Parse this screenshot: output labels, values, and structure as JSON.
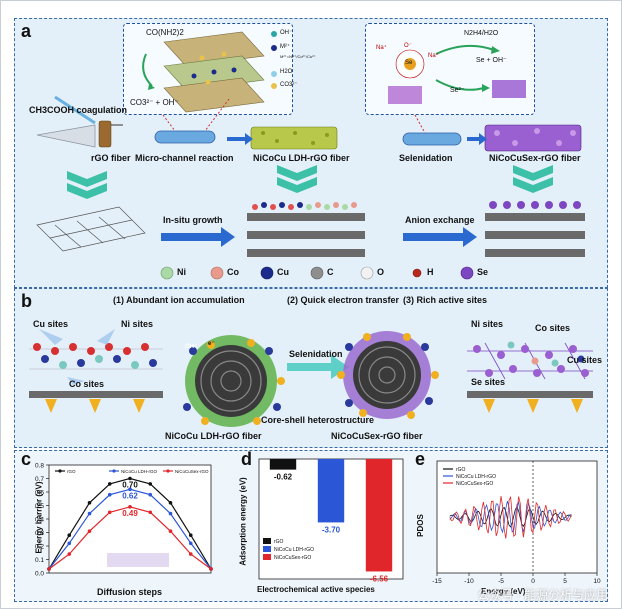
{
  "panel_a": {
    "label": "a",
    "coagulation": "CH3COOH coagulation",
    "rgo_fiber": "rGO fiber",
    "microchannel": "Micro-channel reaction",
    "ldh_fiber": "NiCoCu LDH-rGO fiber",
    "selenidation": "Selenidation",
    "se_fiber": "NiCoCuSex-rGO fiber",
    "insitu": "In-situ growth",
    "anion": "Anion exchange",
    "inset1": {
      "urea": "CO(NH2)2",
      "products": "CO3²⁻ + OH⁻",
      "legend": [
        "OH⁻",
        "M²⁺",
        "M²⁺=Ni²⁺/Co²⁺/Cu²⁺",
        "H2O",
        "CO3²⁻"
      ]
    },
    "inset2": {
      "n2h4": "N2H4/H2O",
      "seoh": "Se + OH⁻",
      "se2": "Se²⁻",
      "na1": "Na⁺",
      "na2": "Na⁺",
      "o": "O⁻",
      "se": "Se"
    },
    "legend": [
      {
        "label": "Ni",
        "color": "#a9d9a4"
      },
      {
        "label": "Co",
        "color": "#e89a8c"
      },
      {
        "label": "Cu",
        "color": "#1c2a8c"
      },
      {
        "label": "C",
        "color": "#8e8e8e"
      },
      {
        "label": "O",
        "color": "#f2f2f2"
      },
      {
        "label": "H",
        "color": "#b8281c"
      },
      {
        "label": "Se",
        "color": "#7d47c2"
      }
    ]
  },
  "panel_b": {
    "label": "b",
    "h1": "(1) Abundant ion accumulation",
    "h2": "(2) Quick electron transfer",
    "h3": "(3) Rich active sites",
    "cu_sites": "Cu sites",
    "ni_sites": "Ni sites",
    "co_sites": "Co sites",
    "ni_sites_r": "Ni sites",
    "co_sites_r": "Co sites",
    "se_sites": "Se sites",
    "cu_sites_r": "Cu sites",
    "selenidation": "Selenidation",
    "core_shell": "Core-shell heterostructure",
    "ldh_fiber": "NiCoCu LDH-rGO fiber",
    "se_fiber": "NiCoCuSex-rGO fiber",
    "oh": "OH⁻",
    "e": "e⁻"
  },
  "panel_c": {
    "label": "c",
    "chart_data": {
      "type": "line",
      "xlabel": "Diffusion steps",
      "ylabel": "Energy barrier (eV)",
      "ylim": [
        0.0,
        0.8
      ],
      "yticks": [
        "0.0",
        "0.1",
        "0.2",
        "0.3",
        "0.4",
        "0.5",
        "0.6",
        "0.7",
        "0.8"
      ],
      "x": [
        0,
        1,
        2,
        3,
        4,
        5,
        6,
        7,
        8
      ],
      "series": [
        {
          "name": "rGO",
          "color": "#111111",
          "values": [
            0.03,
            0.28,
            0.52,
            0.66,
            0.7,
            0.66,
            0.52,
            0.28,
            0.03
          ],
          "peak_label": "0.70"
        },
        {
          "name": "NiCoCu LDH-rGO",
          "color": "#2b56d6",
          "values": [
            0.03,
            0.22,
            0.44,
            0.58,
            0.62,
            0.58,
            0.44,
            0.22,
            0.03
          ],
          "peak_label": "0.62"
        },
        {
          "name": "NiCoCuSex-rGO",
          "color": "#e0262a",
          "values": [
            0.03,
            0.14,
            0.31,
            0.45,
            0.49,
            0.45,
            0.31,
            0.14,
            0.03
          ],
          "peak_label": "0.49"
        }
      ]
    }
  },
  "panel_d": {
    "label": "d",
    "chart_data": {
      "type": "bar",
      "ylabel": "Adsorption energy (eV)",
      "xlabel": "Electrochemical active species",
      "categories": [
        "rGO",
        "NiCoCu LDH-rGO",
        "NiCoCuSex-rGO"
      ],
      "values": [
        -0.62,
        -3.7,
        -6.56
      ],
      "value_labels": [
        "-0.62",
        "-3.70",
        "-6.56"
      ],
      "colors": [
        "#111111",
        "#2b56d6",
        "#e0262a"
      ],
      "ylim": [
        -7.0,
        0.0
      ]
    }
  },
  "panel_e": {
    "label": "e",
    "chart_data": {
      "type": "line",
      "xlabel": "Energy (eV)",
      "ylabel": "PDOS",
      "xlim": [
        -15,
        10
      ],
      "xticks": [
        "-15",
        "-10",
        "-5",
        "0",
        "5",
        "10"
      ],
      "fermi_level": 0,
      "series": [
        {
          "name": "rGO",
          "color": "#111111"
        },
        {
          "name": "NiCoCu LDH-rGO",
          "color": "#2b56d6"
        },
        {
          "name": "NiCoCuSex-rGO",
          "color": "#e0262a"
        }
      ]
    }
  },
  "watermark": "公众号 · 能源分析与应用"
}
